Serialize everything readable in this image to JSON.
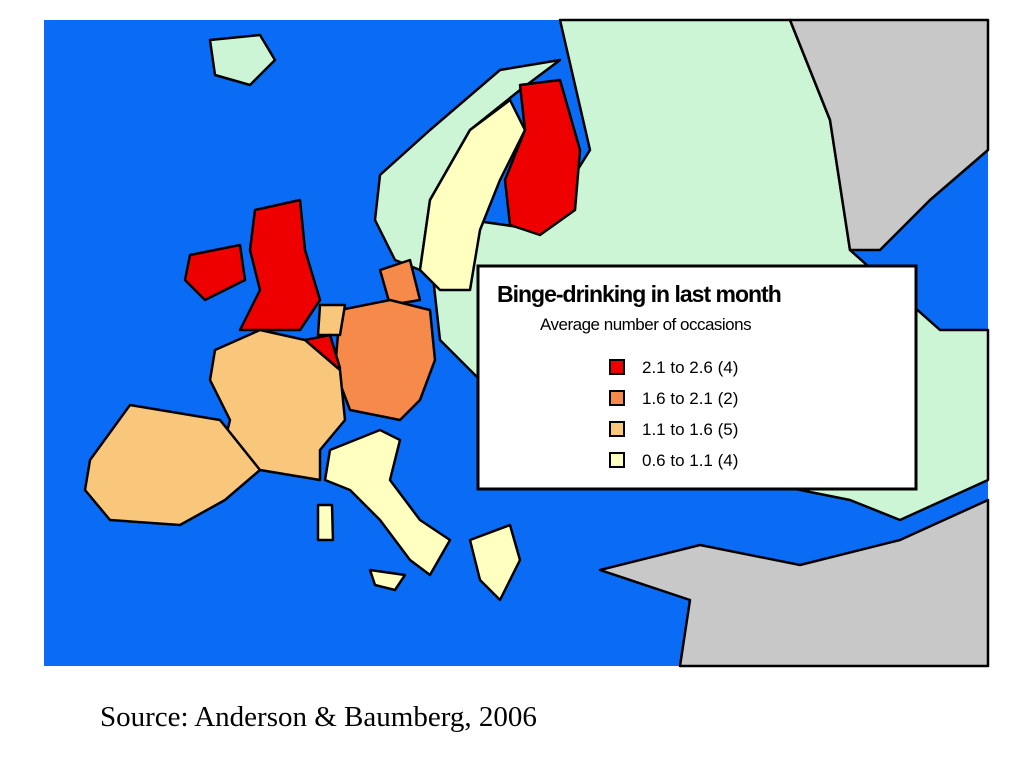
{
  "map": {
    "title": "Binge-drinking in last month",
    "subtitle": "Average number of occasions",
    "legend": [
      {
        "label": "2.1 to 2.6 (4)",
        "color": "#ee0000"
      },
      {
        "label": "1.6 to 2.1 (2)",
        "color": "#f58a4b"
      },
      {
        "label": "1.1 to 1.6 (5)",
        "color": "#f9c77c"
      },
      {
        "label": "0.6 to 1.1 (4)",
        "color": "#ffffc0"
      }
    ]
  },
  "source": "Source: Anderson & Baumberg, 2006"
}
